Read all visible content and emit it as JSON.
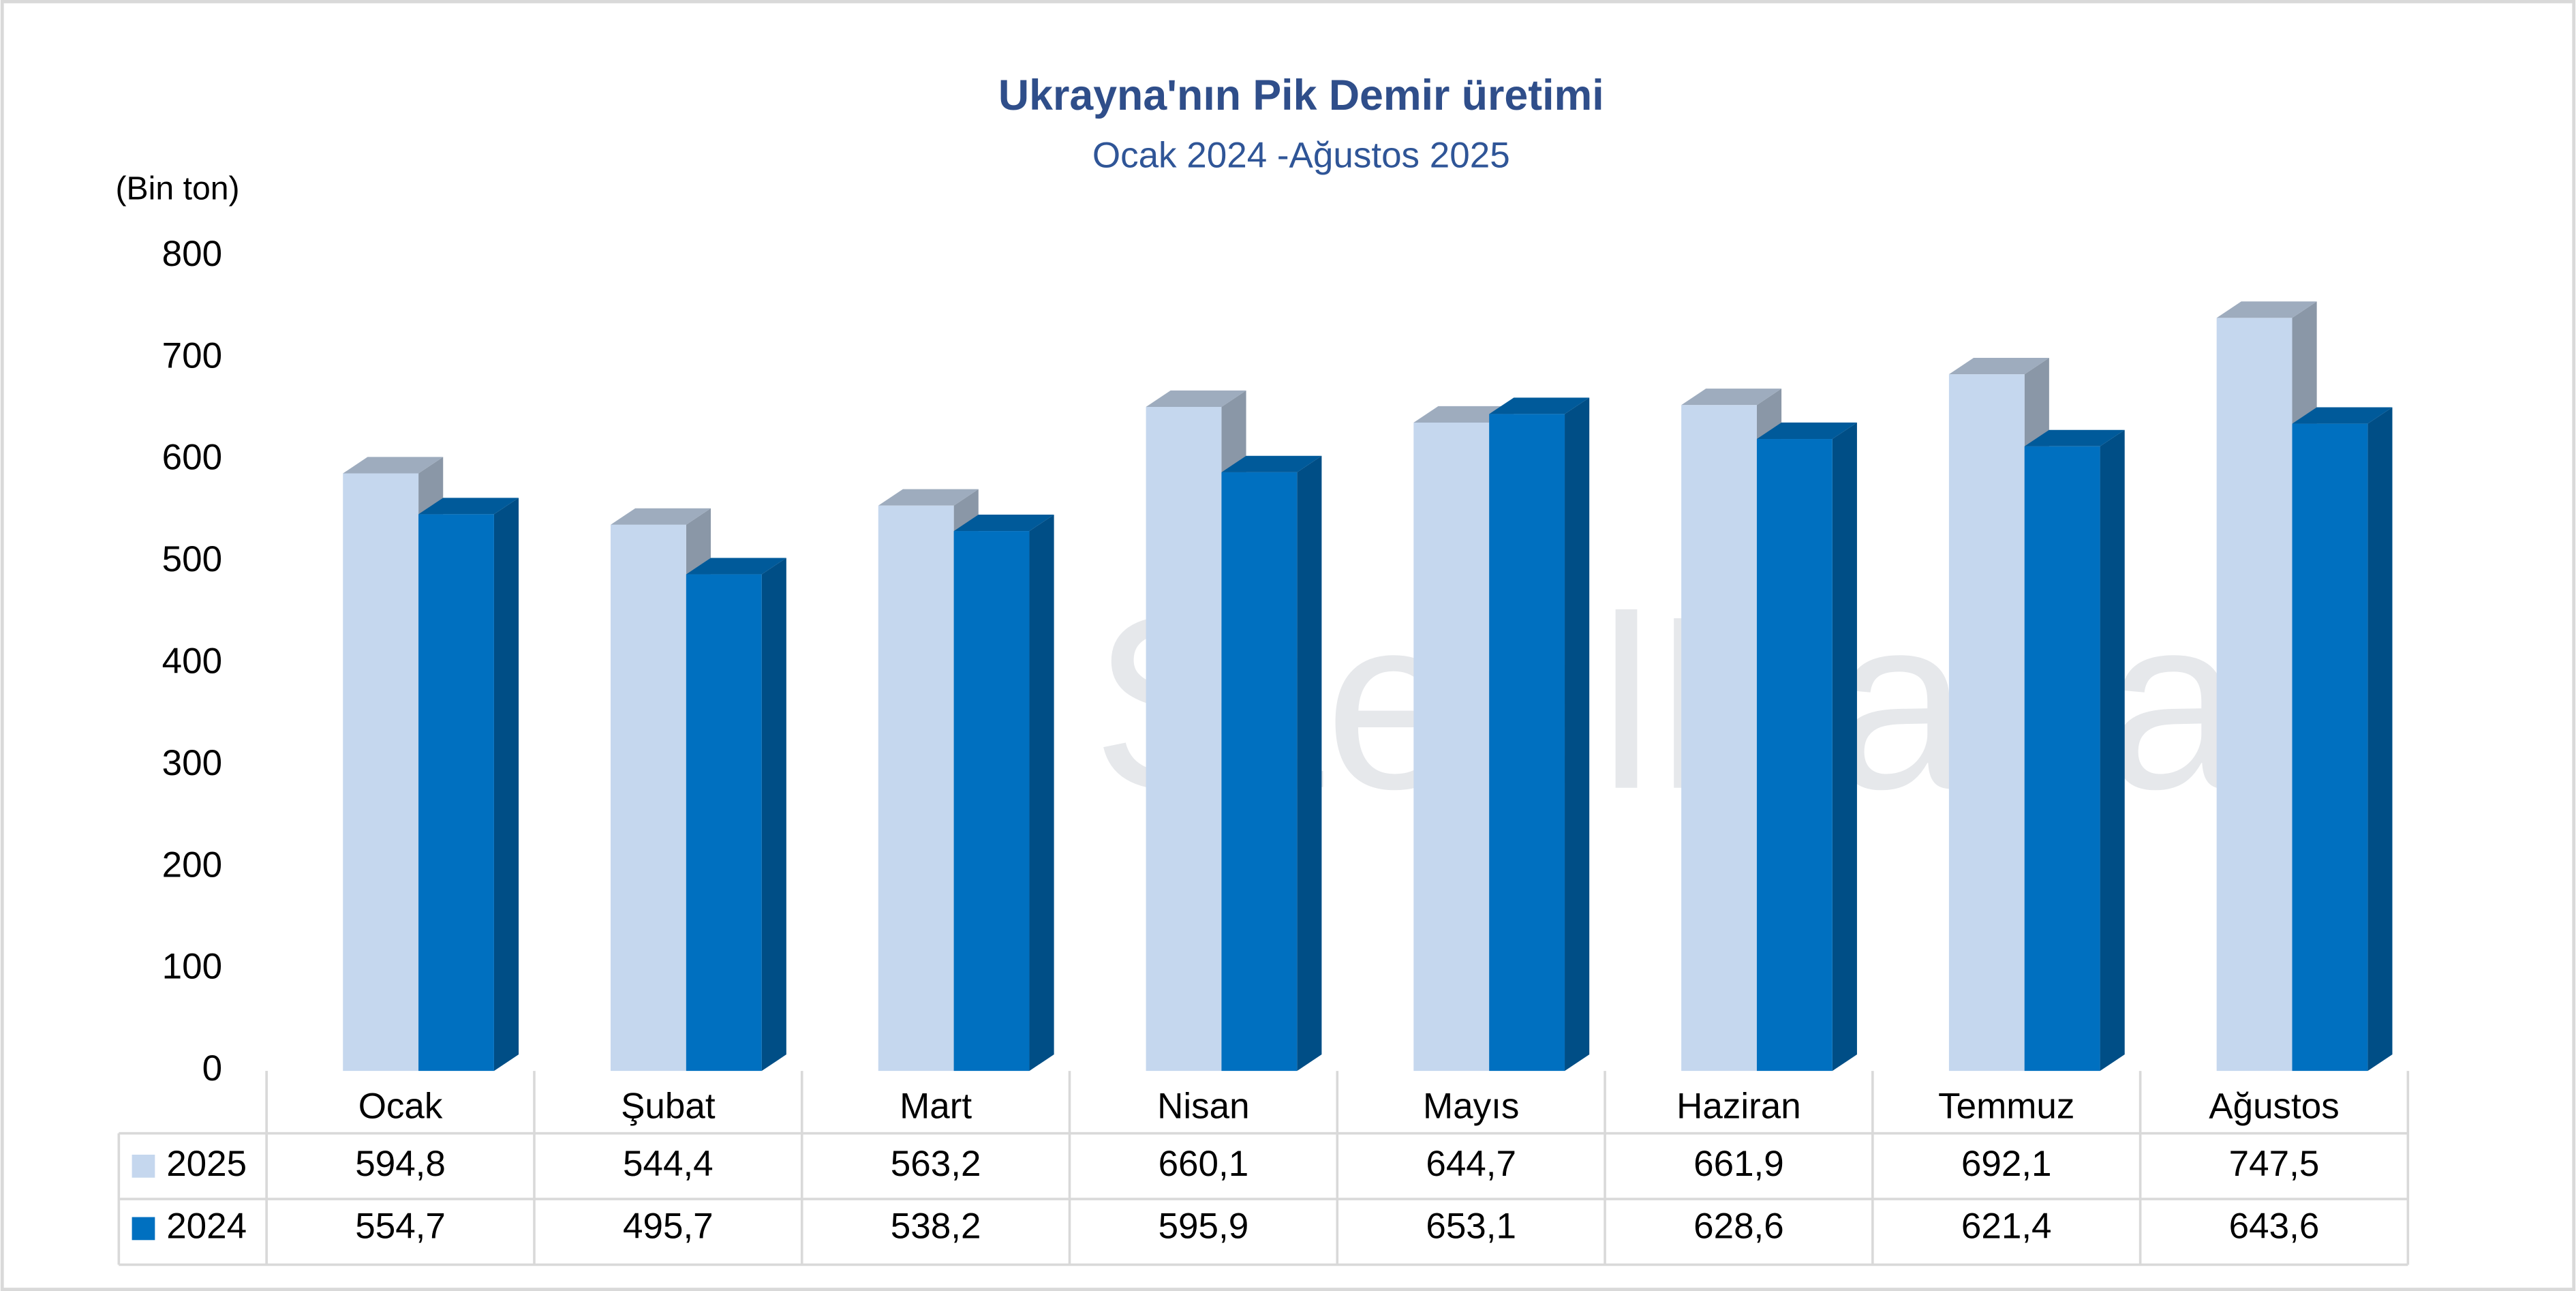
{
  "chart_data": {
    "type": "bar3d",
    "title": "Ukrayna'nın Pik Demir üretimi",
    "subtitle": "Ocak 2024 -Ağustos 2025",
    "y_label": "(Bin ton)",
    "watermark": "SteelRadar",
    "categories": [
      "Ocak",
      "Şubat",
      "Mart",
      "Nisan",
      "Mayıs",
      "Haziran",
      "Temmuz",
      "Ağustos"
    ],
    "series": [
      {
        "name": "2025",
        "color": "#c5d7ee",
        "values": [
          594.8,
          544.4,
          563.2,
          660.1,
          644.7,
          661.9,
          692.1,
          747.5
        ],
        "value_labels": [
          "594,8",
          "544,4",
          "563,2",
          "660,1",
          "644,7",
          "661,9",
          "692,1",
          "747,5"
        ]
      },
      {
        "name": "2024",
        "color": "#0070c0",
        "values": [
          554.7,
          495.7,
          538.2,
          595.9,
          653.1,
          628.6,
          621.4,
          643.6
        ],
        "value_labels": [
          "554,7",
          "495,7",
          "538,2",
          "595,9",
          "653,1",
          "628,6",
          "621,4",
          "643,6"
        ]
      }
    ],
    "ylim": [
      0,
      800
    ],
    "yticks": [
      0,
      100,
      200,
      300,
      400,
      500,
      600,
      700,
      800
    ],
    "grid": false
  }
}
